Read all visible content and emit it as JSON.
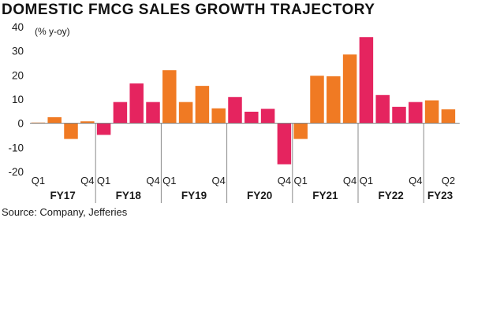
{
  "chart_data": {
    "type": "bar",
    "title": "DOMESTIC FMCG SALES GROWTH TRAJECTORY",
    "ylabel": "(% y-oy)",
    "source": "Source: Company, Jefferies",
    "ylim": [
      -20,
      40
    ],
    "yticks": [
      -20,
      -10,
      0,
      10,
      20,
      30,
      40
    ],
    "grid": false,
    "colors": {
      "orange": "#f07a23",
      "crimson": "#e5245f"
    },
    "quarter_labels": [
      {
        "index": 0,
        "label": "Q1"
      },
      {
        "index": 3,
        "label": "Q4"
      },
      {
        "index": 4,
        "label": "Q1"
      },
      {
        "index": 7,
        "label": "Q4"
      },
      {
        "index": 8,
        "label": "Q1"
      },
      {
        "index": 11,
        "label": "Q4"
      },
      {
        "index": 15,
        "label": "Q4"
      },
      {
        "index": 16,
        "label": "Q1"
      },
      {
        "index": 19,
        "label": "Q4"
      },
      {
        "index": 20,
        "label": "Q1"
      },
      {
        "index": 23,
        "label": "Q4"
      },
      {
        "index": 25,
        "label": "Q2"
      }
    ],
    "fiscal_years": [
      {
        "label": "FY17",
        "start": 0,
        "end": 3,
        "color": "orange"
      },
      {
        "label": "FY18",
        "start": 4,
        "end": 7,
        "color": "crimson"
      },
      {
        "label": "FY19",
        "start": 8,
        "end": 11,
        "color": "orange"
      },
      {
        "label": "FY20",
        "start": 12,
        "end": 15,
        "color": "crimson"
      },
      {
        "label": "FY21",
        "start": 16,
        "end": 19,
        "color": "orange"
      },
      {
        "label": "FY22",
        "start": 20,
        "end": 23,
        "color": "crimson"
      },
      {
        "label": "FY23",
        "start": 24,
        "end": 25,
        "color": "orange"
      }
    ],
    "values": [
      0.3,
      2.5,
      -6.5,
      0.8,
      -4.8,
      8.8,
      16.5,
      8.8,
      22,
      8.8,
      15.5,
      6.2,
      10.9,
      4.8,
      6,
      -17,
      -6.5,
      19.7,
      19.5,
      28.5,
      35.7,
      11.7,
      6.8,
      8.8,
      9.5,
      5.8
    ]
  }
}
